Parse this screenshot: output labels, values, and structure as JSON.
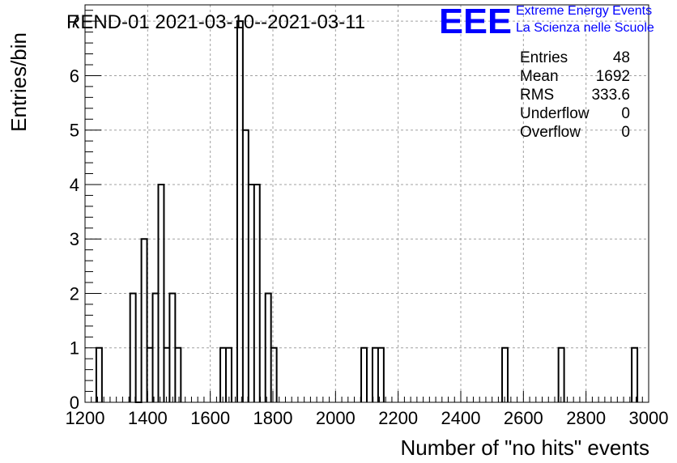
{
  "chart_data": {
    "type": "histogram",
    "title": "REND-01 2021-03-10--2021-03-11",
    "xlabel": "Number of \"no hits\" events",
    "ylabel": "Entries/bin",
    "xlim": [
      1200,
      3000
    ],
    "ylim": [
      0,
      7.3
    ],
    "bin_width": 18,
    "x_ticks": [
      1200,
      1400,
      1600,
      1800,
      2000,
      2200,
      2400,
      2600,
      2800,
      3000
    ],
    "x_tick_labels": [
      "1200",
      "1400",
      "1600",
      "1800",
      "2000",
      "2200",
      "2400",
      "2600",
      "2800",
      "3000"
    ],
    "y_ticks": [
      0,
      1,
      2,
      3,
      4,
      5,
      6,
      7
    ],
    "y_tick_labels": [
      "0",
      "1",
      "2",
      "3",
      "4",
      "5",
      "6",
      "7"
    ],
    "grid": true,
    "bins": [
      {
        "x": 1236,
        "count": 1
      },
      {
        "x": 1344,
        "count": 2
      },
      {
        "x": 1362,
        "count": 0
      },
      {
        "x": 1380,
        "count": 3
      },
      {
        "x": 1398,
        "count": 1
      },
      {
        "x": 1416,
        "count": 2
      },
      {
        "x": 1434,
        "count": 4
      },
      {
        "x": 1452,
        "count": 1
      },
      {
        "x": 1470,
        "count": 2
      },
      {
        "x": 1488,
        "count": 1
      },
      {
        "x": 1632,
        "count": 1
      },
      {
        "x": 1650,
        "count": 1
      },
      {
        "x": 1686,
        "count": 7
      },
      {
        "x": 1704,
        "count": 5
      },
      {
        "x": 1722,
        "count": 4
      },
      {
        "x": 1740,
        "count": 4
      },
      {
        "x": 1776,
        "count": 2
      },
      {
        "x": 1794,
        "count": 1
      },
      {
        "x": 2082,
        "count": 1
      },
      {
        "x": 2118,
        "count": 1
      },
      {
        "x": 2136,
        "count": 1
      },
      {
        "x": 2532,
        "count": 1
      },
      {
        "x": 2712,
        "count": 1
      },
      {
        "x": 2946,
        "count": 1
      }
    ],
    "stats": [
      {
        "label": "Entries",
        "value": "48"
      },
      {
        "label": "Mean",
        "value": "1692"
      },
      {
        "label": "RMS",
        "value": "333.6"
      },
      {
        "label": "Underflow",
        "value": "0"
      },
      {
        "label": "Overflow",
        "value": "0"
      }
    ],
    "logo": {
      "mark": "EEE",
      "line1": "Extreme Energy Events",
      "line2": "La Scienza nelle Scuole",
      "color": "#0000ff"
    },
    "line_color": "#000000",
    "grid_color": "#a0a0a0"
  }
}
